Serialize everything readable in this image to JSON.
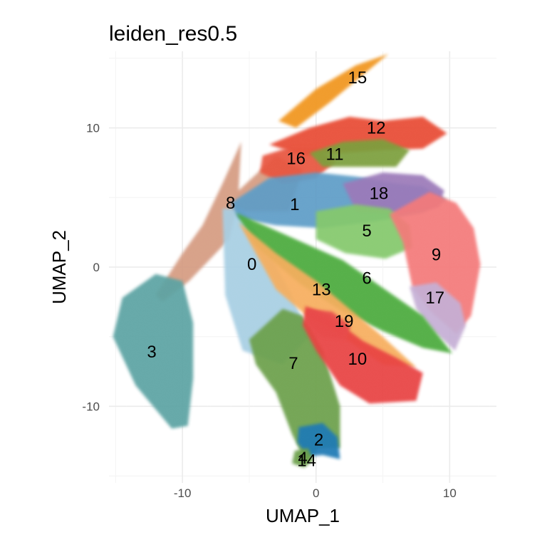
{
  "chart_data": {
    "type": "scatter",
    "title": "leiden_res0.5",
    "xlabel": "UMAP_1",
    "ylabel": "UMAP_2",
    "xlim": [
      -15.5,
      13.5
    ],
    "ylim": [
      -15.5,
      15.5
    ],
    "x_ticks": [
      -10,
      0,
      10
    ],
    "x_tick_labels": [
      "-10",
      "0",
      "10"
    ],
    "y_ticks": [
      -10,
      0,
      10
    ],
    "y_tick_labels": [
      "-10",
      "0",
      "10"
    ],
    "grid": true,
    "legend": "none",
    "clusters": [
      {
        "label": "0",
        "x": -4.8,
        "y": 0.2,
        "color": "#a6cee3"
      },
      {
        "label": "1",
        "x": -1.6,
        "y": 4.5,
        "color": "#5b9bc6"
      },
      {
        "label": "2",
        "x": 0.2,
        "y": -12.4,
        "color": "#1f78b4"
      },
      {
        "label": "3",
        "x": -12.3,
        "y": -6.1,
        "color": "#5aa2a2"
      },
      {
        "label": "4",
        "x": -1.0,
        "y": -13.7,
        "color": "#cc6633"
      },
      {
        "label": "5",
        "x": 3.8,
        "y": 2.6,
        "color": "#83c86a"
      },
      {
        "label": "6",
        "x": 3.8,
        "y": -0.8,
        "color": "#4aaa3a"
      },
      {
        "label": "7",
        "x": -1.7,
        "y": -6.9,
        "color": "#6a9f4a"
      },
      {
        "label": "8",
        "x": -6.4,
        "y": 4.6,
        "color": "#d49a80"
      },
      {
        "label": "9",
        "x": 9.0,
        "y": 0.9,
        "color": "#f47878"
      },
      {
        "label": "10",
        "x": 3.1,
        "y": -6.6,
        "color": "#e84040"
      },
      {
        "label": "11",
        "x": 1.4,
        "y": 8.1,
        "color": "#7a9e3a"
      },
      {
        "label": "12",
        "x": 4.5,
        "y": 10.0,
        "color": "#e84a33"
      },
      {
        "label": "13",
        "x": 0.4,
        "y": -1.6,
        "color": "#f7ad5c"
      },
      {
        "label": "14",
        "x": -0.7,
        "y": -13.9,
        "color": "#6a9f4a"
      },
      {
        "label": "15",
        "x": 3.1,
        "y": 13.6,
        "color": "#f1941f"
      },
      {
        "label": "16",
        "x": -1.5,
        "y": 7.8,
        "color": "#e8533c"
      },
      {
        "label": "17",
        "x": 8.9,
        "y": -2.2,
        "color": "#c4aed4"
      },
      {
        "label": "18",
        "x": 4.7,
        "y": 5.3,
        "color": "#9a78b8"
      },
      {
        "label": "19",
        "x": 2.1,
        "y": -3.9,
        "color": "#e84a4a"
      }
    ]
  }
}
